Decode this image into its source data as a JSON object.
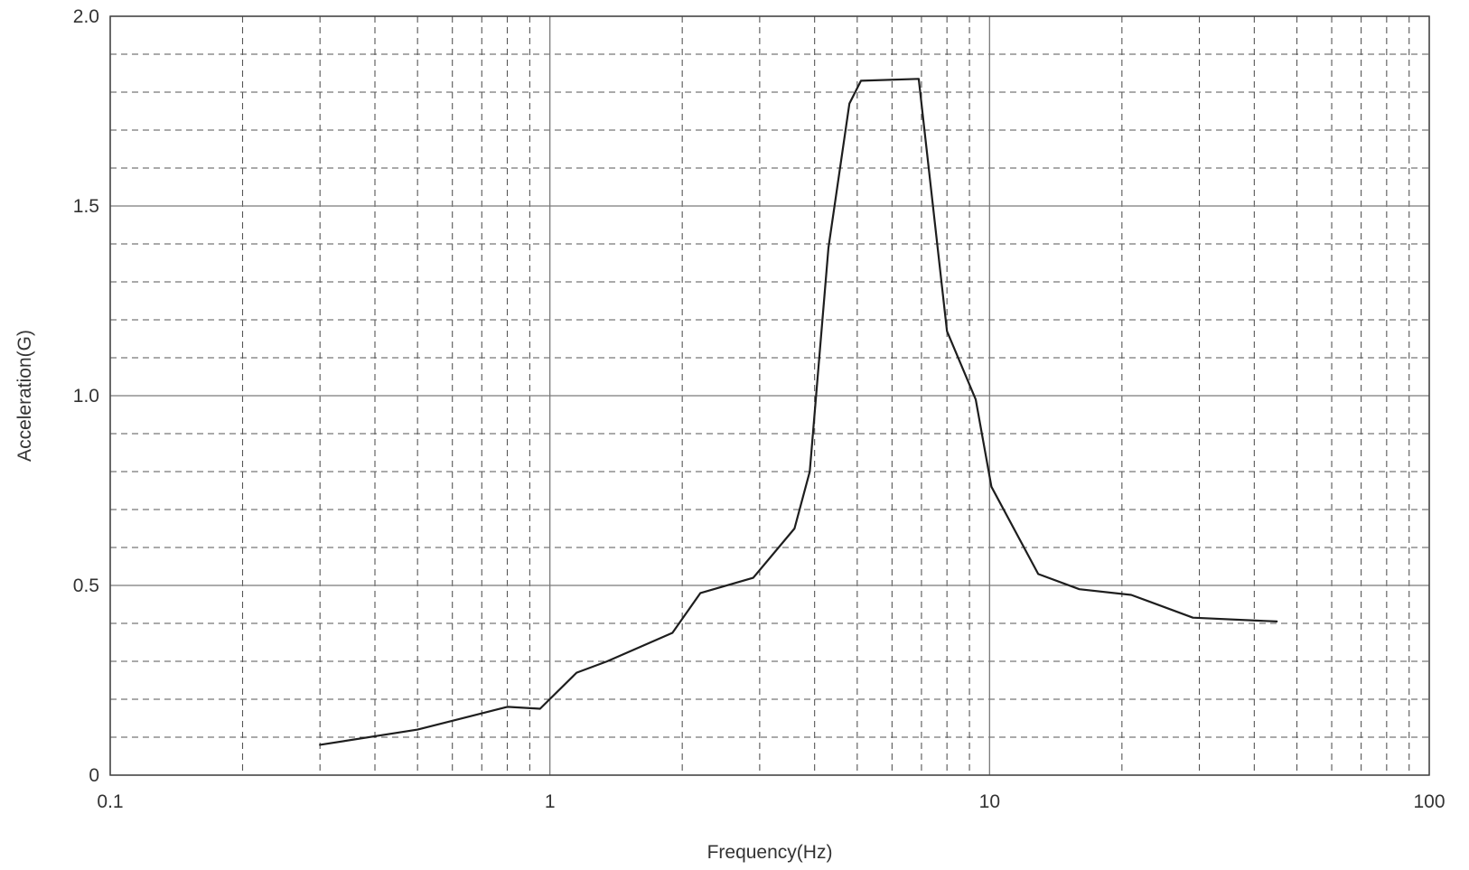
{
  "chart_data": {
    "type": "line",
    "title": "",
    "xlabel": "Frequency(Hz)",
    "ylabel": "Acceleration(G)",
    "xscale": "log",
    "xlim": [
      0.1,
      100
    ],
    "ylim": [
      0,
      2.0
    ],
    "x_ticks": [
      {
        "value": 0.1,
        "label": "0.1"
      },
      {
        "value": 1,
        "label": "1"
      },
      {
        "value": 10,
        "label": "10"
      },
      {
        "value": 100,
        "label": "100"
      }
    ],
    "y_ticks": [
      {
        "value": 0,
        "label": "0"
      },
      {
        "value": 0.5,
        "label": "0.5"
      },
      {
        "value": 1.0,
        "label": "1.0"
      },
      {
        "value": 1.5,
        "label": "1.5"
      },
      {
        "value": 2.0,
        "label": "2.0"
      }
    ],
    "grid": true,
    "series": [
      {
        "x": [
          0.3,
          0.5,
          0.8,
          0.95,
          1.15,
          1.35,
          1.9,
          2.2,
          2.9,
          3.6,
          3.9,
          4.3,
          4.8,
          5.1,
          6.9,
          8.0,
          9.3,
          10.1,
          12.9,
          16.0,
          21.0,
          29.0,
          45.0
        ],
        "y": [
          0.08,
          0.12,
          0.18,
          0.175,
          0.27,
          0.3,
          0.375,
          0.48,
          0.52,
          0.65,
          0.8,
          1.39,
          1.77,
          1.83,
          1.835,
          1.17,
          0.99,
          0.76,
          0.53,
          0.49,
          0.475,
          0.415,
          0.405
        ]
      }
    ],
    "colors": {
      "line": "#1e1e1e",
      "major_grid": "#7a7a7a",
      "minor_grid": "#555555",
      "frame": "#444444"
    }
  }
}
